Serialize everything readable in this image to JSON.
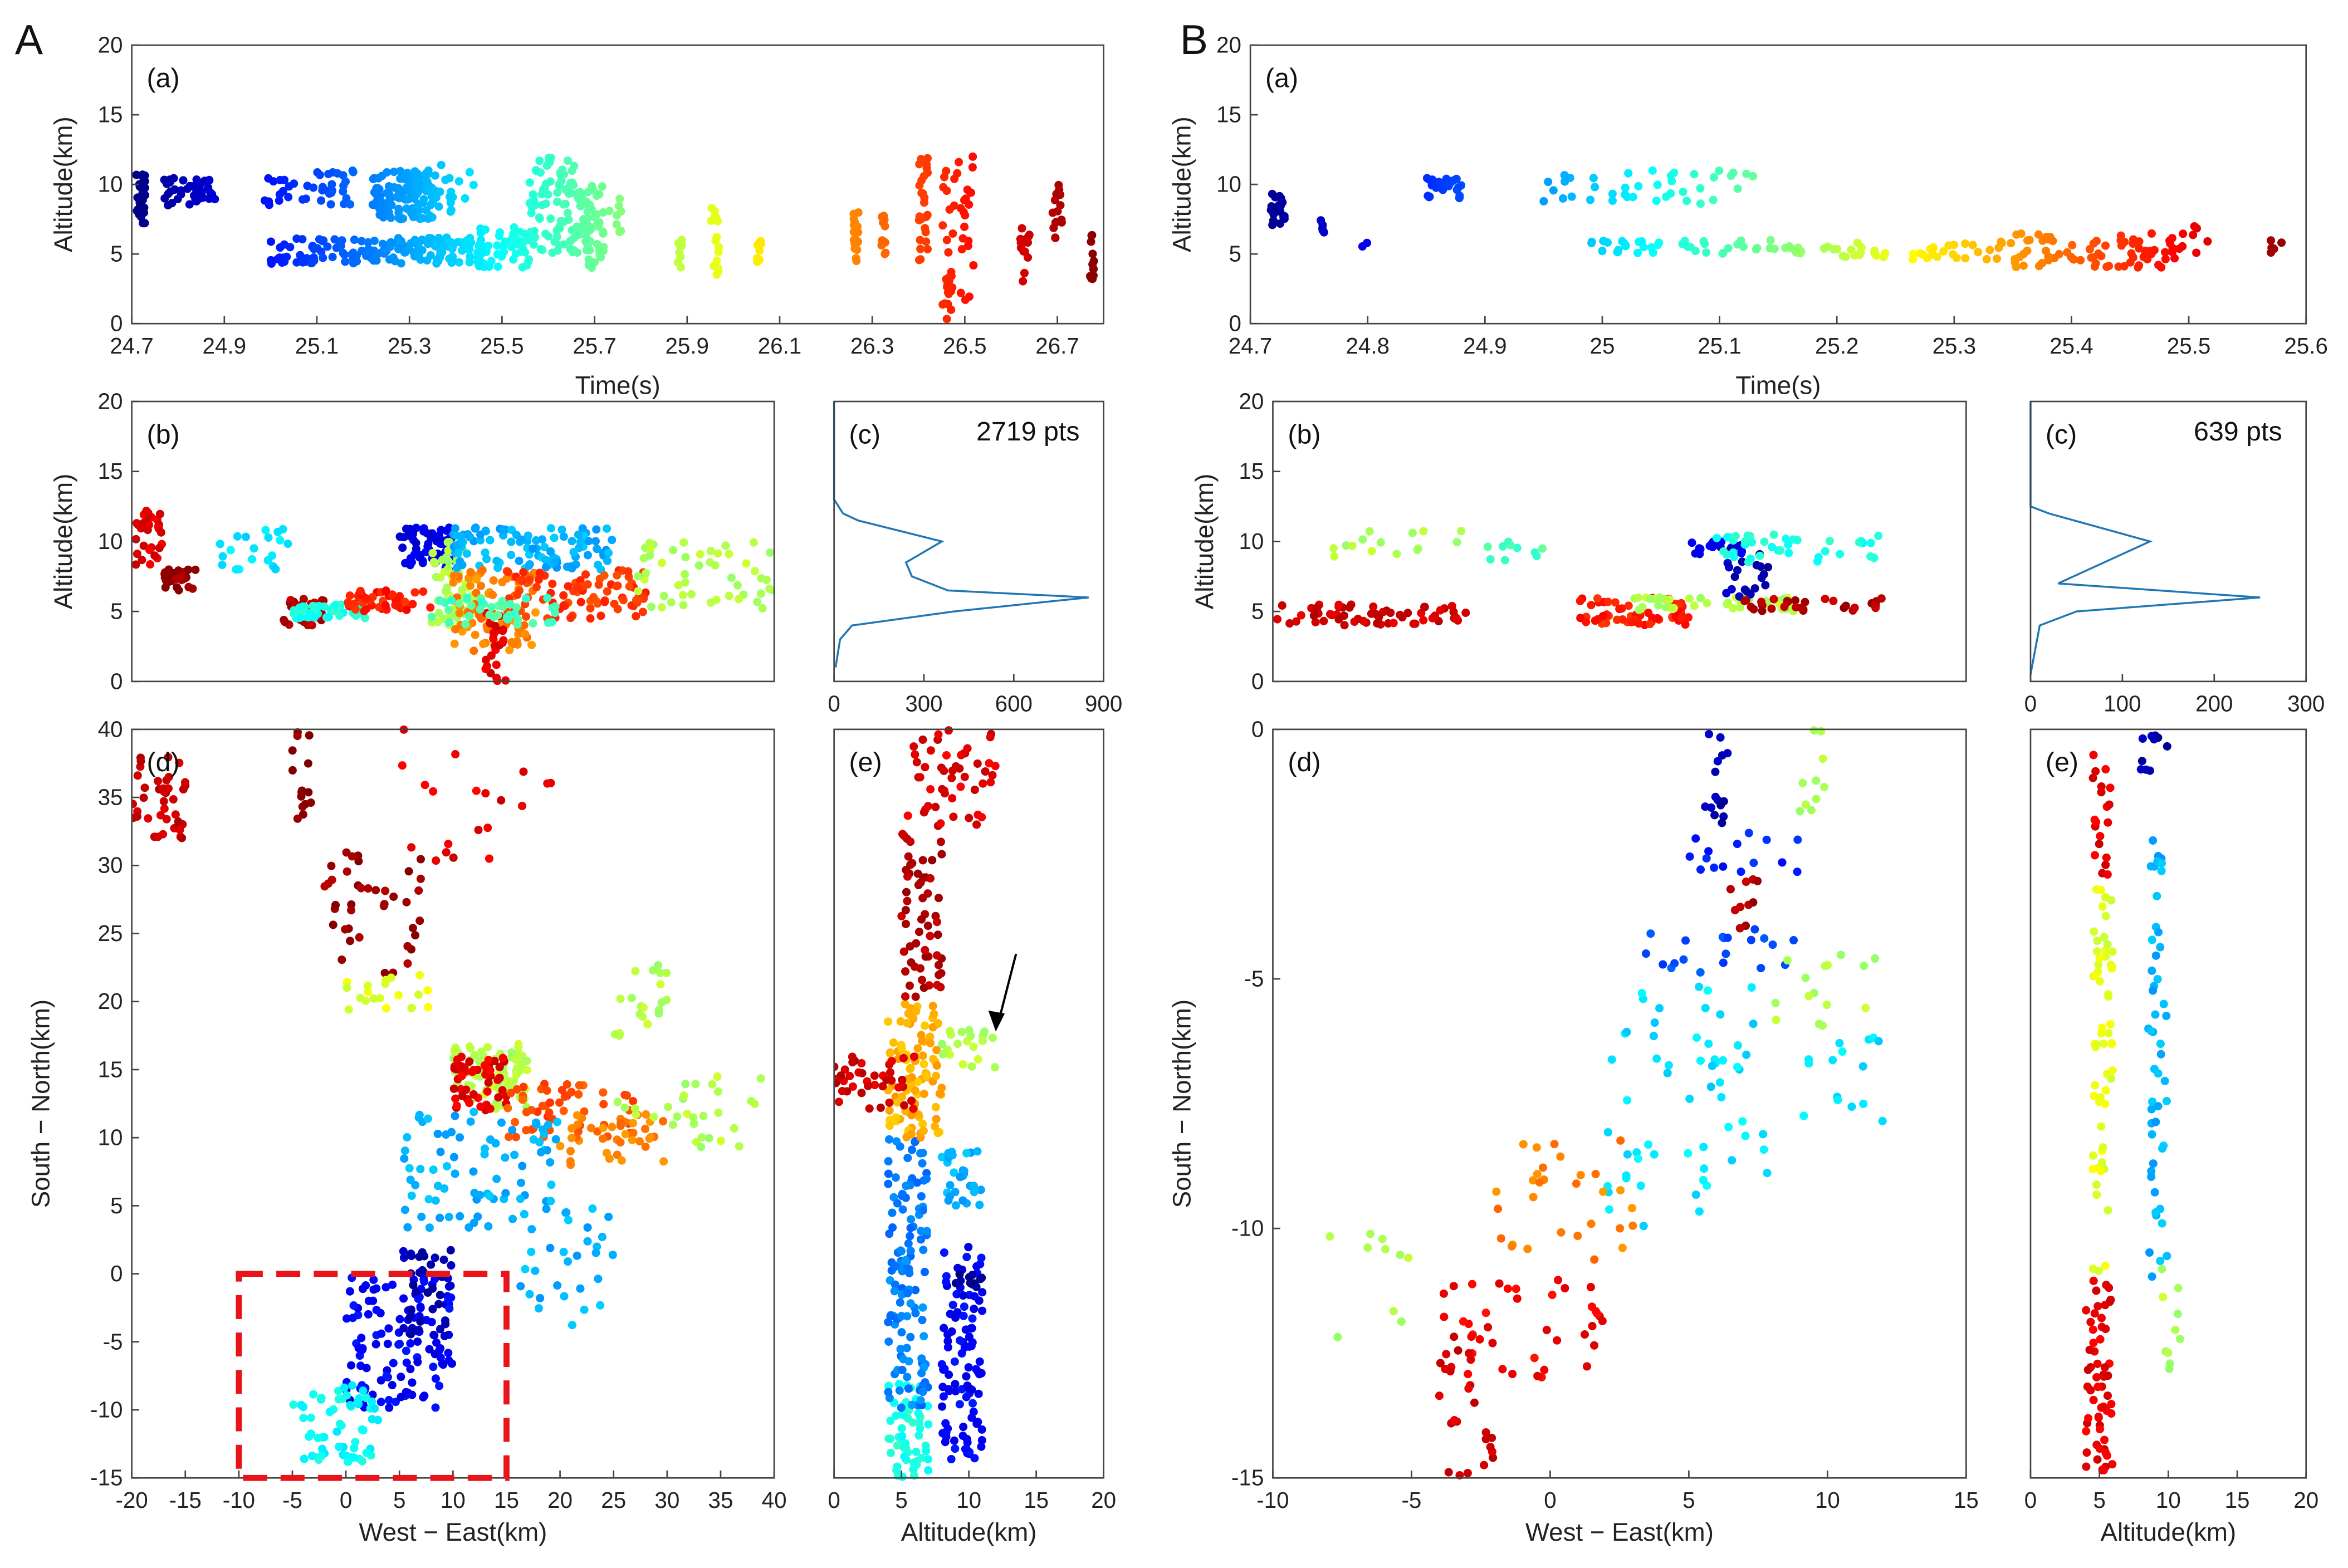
{
  "figure": {
    "label_A": "A",
    "label_B": "B"
  },
  "chart_data": [
    {
      "id": "Aa",
      "type": "scatter",
      "label": "(a)",
      "color_by": "x",
      "xlim": [
        24.7,
        26.8
      ],
      "ylim": [
        0,
        20
      ],
      "xticks": [
        24.7,
        24.9,
        25.1,
        25.3,
        25.5,
        25.7,
        25.9,
        26.1,
        26.3,
        26.5,
        26.7
      ],
      "yticks": [
        0,
        5,
        10,
        15,
        20
      ],
      "xlabel": "Time(s)",
      "ylabel": "Altitude(km)",
      "clusters": [
        [
          24.71,
          24.73,
          7,
          11,
          30
        ],
        [
          24.77,
          24.88,
          8.5,
          10.5,
          40
        ],
        [
          24.98,
          25.18,
          8.5,
          11,
          40
        ],
        [
          25.0,
          25.45,
          4.3,
          6.2,
          150
        ],
        [
          25.22,
          25.35,
          7.5,
          11,
          120
        ],
        [
          25.35,
          25.45,
          8,
          11.5,
          20
        ],
        [
          25.45,
          25.56,
          4,
          7,
          60
        ],
        [
          25.56,
          25.66,
          5,
          12,
          80
        ],
        [
          25.66,
          25.72,
          4,
          10,
          60
        ],
        [
          25.73,
          25.76,
          6,
          9,
          8
        ],
        [
          25.88,
          25.89,
          4,
          7,
          10
        ],
        [
          25.95,
          25.97,
          3,
          8.5,
          15
        ],
        [
          26.05,
          26.06,
          4,
          6,
          10
        ],
        [
          26.26,
          26.27,
          4.5,
          8,
          20
        ],
        [
          26.32,
          26.33,
          5,
          8,
          12
        ],
        [
          26.4,
          26.42,
          4.5,
          12,
          30
        ],
        [
          26.45,
          26.52,
          0,
          12.5,
          50
        ],
        [
          26.62,
          26.64,
          3,
          7,
          15
        ],
        [
          26.69,
          26.71,
          6,
          10,
          15
        ],
        [
          26.77,
          26.78,
          2.5,
          6.5,
          12
        ]
      ]
    },
    {
      "id": "Ab",
      "type": "scatter",
      "label": "(b)",
      "xlim": [
        -20,
        40
      ],
      "ylim": [
        0,
        20
      ],
      "xticks": [],
      "yticks": [
        0,
        5,
        10,
        15,
        20
      ],
      "xlabel": "",
      "ylabel": "Altitude(km)",
      "clusters": [
        [
          -20,
          -17,
          8,
          12.5,
          30,
          0.9
        ],
        [
          -17,
          -14,
          6.5,
          8,
          25,
          0.97
        ],
        [
          -12,
          -5,
          8,
          11,
          20,
          0.35
        ],
        [
          -6,
          -2,
          4,
          6,
          40,
          0.95
        ],
        [
          -5,
          2,
          4.5,
          5.5,
          50,
          0.4
        ],
        [
          0,
          8,
          5,
          6.5,
          50,
          0.85
        ],
        [
          5,
          10,
          8,
          11,
          60,
          0.1
        ],
        [
          8,
          12,
          4,
          10,
          60,
          0.55
        ],
        [
          10,
          25,
          8,
          11,
          100,
          0.3
        ],
        [
          10,
          18,
          2,
          8,
          80,
          0.75
        ],
        [
          13,
          15,
          0,
          5,
          25,
          0.9
        ],
        [
          15,
          28,
          4.5,
          8,
          90,
          0.82
        ],
        [
          27,
          40,
          5,
          10,
          50,
          0.55
        ],
        [
          8,
          20,
          4,
          6,
          40,
          0.45
        ]
      ]
    },
    {
      "id": "Ac",
      "type": "line",
      "label": "(c)",
      "annotation": "2719 pts",
      "xlim": [
        0,
        900
      ],
      "ylim": [
        0,
        20
      ],
      "xticks": [
        0,
        300,
        600,
        900
      ],
      "yticks": [],
      "xlabel": "",
      "ylabel": "",
      "line": [
        [
          0,
          20
        ],
        [
          0,
          13
        ],
        [
          30,
          12
        ],
        [
          80,
          11.5
        ],
        [
          360,
          10
        ],
        [
          240,
          8.5
        ],
        [
          260,
          7.5
        ],
        [
          380,
          6.5
        ],
        [
          850,
          6
        ],
        [
          400,
          5
        ],
        [
          60,
          4
        ],
        [
          20,
          3
        ],
        [
          5,
          1
        ]
      ]
    },
    {
      "id": "Ad",
      "type": "scatter",
      "label": "(d)",
      "xlim": [
        -20,
        40
      ],
      "ylim": [
        -15,
        40
      ],
      "xticks": [
        -20,
        -15,
        -10,
        -5,
        0,
        5,
        10,
        15,
        20,
        25,
        30,
        35,
        40
      ],
      "yticks": [
        -15,
        -10,
        -5,
        0,
        5,
        10,
        15,
        20,
        25,
        30,
        35,
        40
      ],
      "xlabel": "West − East(km)",
      "ylabel": "South − North(km)",
      "box": [
        -10,
        15,
        -15,
        0
      ],
      "clusters": [
        [
          -20,
          -15,
          32,
          38,
          40,
          0.93
        ],
        [
          -5,
          -3,
          33,
          40,
          15,
          1.0
        ],
        [
          -2,
          7,
          22,
          31,
          40,
          0.97
        ],
        [
          5,
          20,
          30,
          40,
          20,
          0.9
        ],
        [
          0,
          8,
          19,
          22,
          20,
          0.6
        ],
        [
          10,
          17,
          12,
          17,
          80,
          0.55
        ],
        [
          10,
          15,
          12,
          16,
          50,
          0.9
        ],
        [
          15,
          27,
          10,
          14,
          50,
          0.8
        ],
        [
          20,
          30,
          8,
          12,
          40,
          0.75
        ],
        [
          25,
          39,
          9,
          15,
          30,
          0.55
        ],
        [
          25,
          30,
          17,
          23,
          20,
          0.55
        ],
        [
          5,
          20,
          3,
          12,
          80,
          0.3
        ],
        [
          15,
          25,
          -5,
          5,
          30,
          0.3
        ],
        [
          0,
          10,
          -10,
          0,
          120,
          0.12
        ],
        [
          -5,
          3,
          -14,
          -8,
          60,
          0.38
        ],
        [
          5,
          10,
          -5,
          2,
          40,
          0.05
        ]
      ]
    },
    {
      "id": "Ae",
      "type": "scatter",
      "label": "(e)",
      "xlim": [
        0,
        20
      ],
      "ylim": [
        -15,
        40
      ],
      "xticks": [
        0,
        5,
        10,
        15,
        20
      ],
      "yticks": [],
      "xlabel": "Altitude(km)",
      "ylabel": "",
      "arrow": true,
      "clusters": [
        [
          4,
          7,
          -15,
          -8,
          60,
          0.4
        ],
        [
          4,
          7,
          -10,
          10,
          120,
          0.25
        ],
        [
          8,
          11,
          -14,
          2,
          100,
          0.12
        ],
        [
          4,
          8,
          10,
          20,
          100,
          0.7
        ],
        [
          0,
          6,
          12,
          16,
          40,
          0.92
        ],
        [
          5,
          8,
          20,
          33,
          60,
          0.95
        ],
        [
          5,
          12,
          33,
          40,
          50,
          0.9
        ],
        [
          8,
          12,
          15,
          18,
          20,
          0.55
        ],
        [
          9,
          11,
          -1,
          0,
          10,
          0.02
        ],
        [
          8,
          11,
          5,
          9,
          30,
          0.3
        ]
      ]
    },
    {
      "id": "Ba",
      "type": "scatter",
      "label": "(a)",
      "color_by": "x",
      "xlim": [
        24.7,
        25.6
      ],
      "ylim": [
        0,
        20
      ],
      "xticks": [
        24.7,
        24.8,
        24.9,
        25,
        25.1,
        25.2,
        25.3,
        25.4,
        25.5,
        25.6
      ],
      "yticks": [
        0,
        5,
        10,
        15,
        20
      ],
      "xlabel": "Time(s)",
      "ylabel": "Altitude(km)",
      "clusters": [
        [
          24.715,
          24.73,
          7,
          9.5,
          20
        ],
        [
          24.76,
          24.765,
          6.5,
          7.5,
          5
        ],
        [
          24.795,
          24.8,
          5.5,
          6,
          2
        ],
        [
          24.85,
          24.88,
          9,
          10.5,
          25
        ],
        [
          24.95,
          25.15,
          8.5,
          11,
          40
        ],
        [
          24.99,
          25.2,
          5,
          6,
          50
        ],
        [
          25.2,
          25.35,
          4.5,
          6,
          40
        ],
        [
          25.35,
          25.5,
          4,
          6.5,
          80
        ],
        [
          25.5,
          25.52,
          5,
          7,
          5
        ],
        [
          25.57,
          25.58,
          5,
          6,
          6
        ]
      ]
    },
    {
      "id": "Bb",
      "type": "scatter",
      "label": "(b)",
      "xlim": [
        -10,
        15
      ],
      "ylim": [
        0,
        20
      ],
      "xticks": [],
      "yticks": [
        0,
        5,
        10,
        15,
        20
      ],
      "xlabel": "",
      "ylabel": "Altitude(km)",
      "clusters": [
        [
          -8,
          -3,
          8.5,
          11,
          15,
          0.55
        ],
        [
          -3,
          0,
          8.5,
          10,
          10,
          0.45
        ],
        [
          -10,
          -3,
          4,
          5.5,
          60,
          0.92
        ],
        [
          1,
          5,
          4,
          6,
          60,
          0.85
        ],
        [
          3,
          9,
          5,
          6,
          40,
          0.55
        ],
        [
          5,
          7,
          9,
          10,
          20,
          0.1
        ],
        [
          6,
          8,
          6,
          9.5,
          20,
          0.05
        ],
        [
          6,
          12,
          8.5,
          10.5,
          40,
          0.4
        ],
        [
          7,
          12,
          5,
          6,
          30,
          0.95
        ]
      ]
    },
    {
      "id": "Bc",
      "type": "line",
      "label": "(c)",
      "annotation": "639 pts",
      "xlim": [
        0,
        300
      ],
      "ylim": [
        0,
        20
      ],
      "xticks": [
        0,
        100,
        200,
        300
      ],
      "yticks": [],
      "xlabel": "",
      "ylabel": "",
      "line": [
        [
          0,
          20
        ],
        [
          0,
          12.5
        ],
        [
          20,
          12
        ],
        [
          130,
          10
        ],
        [
          30,
          7
        ],
        [
          250,
          6
        ],
        [
          50,
          5
        ],
        [
          10,
          4
        ],
        [
          0,
          0.5
        ]
      ]
    },
    {
      "id": "Bd",
      "type": "scatter",
      "label": "(d)",
      "xlim": [
        -10,
        15
      ],
      "ylim": [
        -15,
        0
      ],
      "xticks": [
        -10,
        -5,
        0,
        5,
        10,
        15
      ],
      "yticks": [
        -15,
        -10,
        -5,
        0
      ],
      "xlabel": "West − East(km)",
      "ylabel": "South − North(km)",
      "clusters": [
        [
          5.5,
          6.5,
          -2,
          0,
          15,
          0.05
        ],
        [
          5,
          9,
          -3,
          -2,
          15,
          0.15
        ],
        [
          9,
          10,
          -2,
          0,
          10,
          0.55
        ],
        [
          6.5,
          7.5,
          -4,
          -3,
          10,
          0.95
        ],
        [
          3,
          9,
          -5,
          -4,
          20,
          0.2
        ],
        [
          8,
          12,
          -6,
          -4.5,
          15,
          0.55
        ],
        [
          2,
          8,
          -10,
          -5,
          60,
          0.35
        ],
        [
          9,
          12,
          -8,
          -6,
          15,
          0.35
        ],
        [
          -2,
          3,
          -11,
          -8,
          30,
          0.75
        ],
        [
          -4,
          2,
          -13,
          -11,
          40,
          0.88
        ],
        [
          -4,
          -2,
          -15,
          -12,
          25,
          0.92
        ],
        [
          -8,
          -5,
          -13,
          -10,
          10,
          0.55
        ]
      ]
    },
    {
      "id": "Be",
      "type": "scatter",
      "label": "(e)",
      "xlim": [
        0,
        20
      ],
      "ylim": [
        -15,
        0
      ],
      "xticks": [
        0,
        5,
        10,
        15,
        20
      ],
      "yticks": [],
      "xlabel": "Altitude(km)",
      "ylabel": "",
      "clusters": [
        [
          4,
          6,
          -15,
          -11,
          60,
          0.9
        ],
        [
          4.5,
          6,
          -11,
          -3,
          60,
          0.6
        ],
        [
          4.5,
          6,
          -3,
          0,
          20,
          0.9
        ],
        [
          8,
          10,
          -1,
          0,
          10,
          0.05
        ],
        [
          8.5,
          10,
          -11,
          -2,
          50,
          0.3
        ],
        [
          9.5,
          11,
          -13,
          -10,
          10,
          0.55
        ]
      ]
    }
  ]
}
